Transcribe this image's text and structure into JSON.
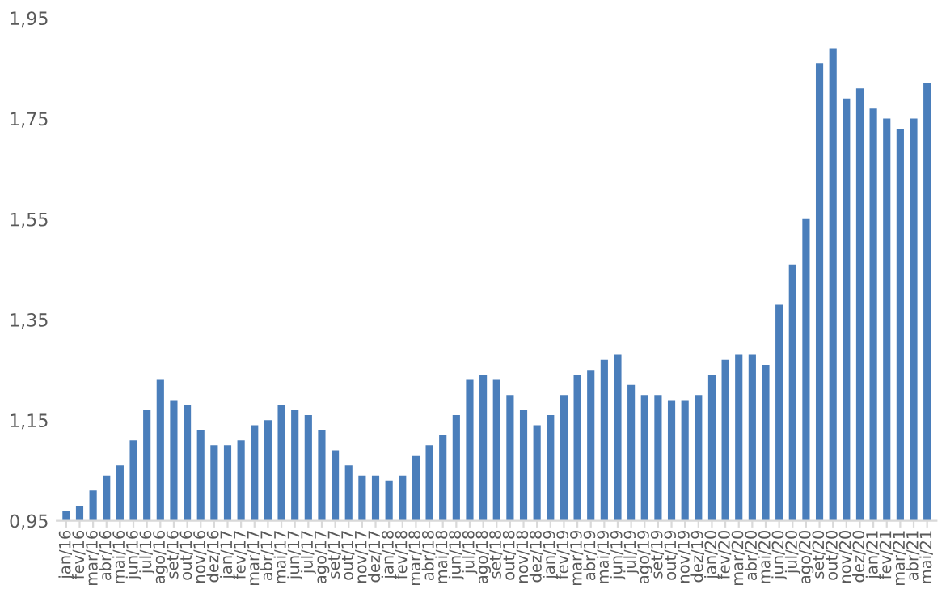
{
  "chart_data": {
    "type": "bar",
    "categories": [
      "jan/16",
      "fev/16",
      "mar/16",
      "abr/16",
      "mai/16",
      "jun/16",
      "jul/16",
      "ago/16",
      "set/16",
      "out/16",
      "nov/16",
      "dez/16",
      "jan/17",
      "fev/17",
      "mar/17",
      "abr/17",
      "mai/17",
      "jun/17",
      "jul/17",
      "ago/17",
      "set/17",
      "out/17",
      "nov/17",
      "dez/17",
      "jan/18",
      "fev/18",
      "mar/18",
      "abr/18",
      "mai/18",
      "jun/18",
      "jul/18",
      "ago/18",
      "set/18",
      "out/18",
      "nov/18",
      "dez/18",
      "jan/19",
      "fev/19",
      "mar/19",
      "abr/19",
      "mai/19",
      "jun/19",
      "jul/19",
      "ago/19",
      "set/19",
      "out/19",
      "nov/19",
      "dez/19",
      "jan/20",
      "fev/20",
      "mar/20",
      "abr/20",
      "mai/20",
      "jun/20",
      "jul/20",
      "ago/20",
      "set/20",
      "out/20",
      "nov/20",
      "dez/20",
      "jan/21",
      "fev/21",
      "mar/21",
      "abr/21",
      "mai/21"
    ],
    "values": [
      0.97,
      0.98,
      1.01,
      1.04,
      1.06,
      1.11,
      1.17,
      1.23,
      1.19,
      1.18,
      1.13,
      1.1,
      1.1,
      1.11,
      1.14,
      1.15,
      1.18,
      1.17,
      1.16,
      1.13,
      1.09,
      1.06,
      1.04,
      1.04,
      1.03,
      1.04,
      1.08,
      1.1,
      1.12,
      1.16,
      1.23,
      1.24,
      1.23,
      1.2,
      1.17,
      1.14,
      1.16,
      1.2,
      1.24,
      1.25,
      1.27,
      1.28,
      1.22,
      1.2,
      1.2,
      1.19,
      1.19,
      1.2,
      1.24,
      1.27,
      1.28,
      1.28,
      1.26,
      1.38,
      1.46,
      1.55,
      1.86,
      1.89,
      1.79,
      1.81,
      1.77,
      1.75,
      1.73,
      1.75,
      1.82
    ],
    "color": "#4a7ebb",
    "ylim": [
      0.95,
      1.95
    ],
    "yticks": [
      {
        "value": 0.95,
        "label": "0,95"
      },
      {
        "value": 1.15,
        "label": "1,15"
      },
      {
        "value": 1.35,
        "label": "1,35"
      },
      {
        "value": 1.55,
        "label": "1,55"
      },
      {
        "value": 1.75,
        "label": "1,75"
      },
      {
        "value": 1.95,
        "label": "1,95"
      }
    ],
    "grid": false,
    "legend": false
  }
}
